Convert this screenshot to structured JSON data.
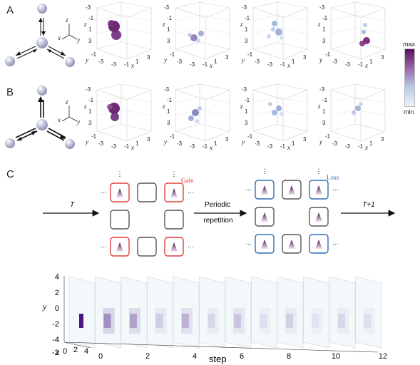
{
  "panels": {
    "a": "A",
    "b": "B",
    "c": "C"
  },
  "axes_3d": {
    "x": "x",
    "y": "y",
    "z": "z",
    "x_ticks": [
      "-3",
      "-1",
      "1",
      "3"
    ],
    "y_ticks": [
      "-3",
      "-1",
      "1",
      "3"
    ],
    "z_ticks": [
      "-3",
      "-1",
      "1",
      "3"
    ]
  },
  "colorbar": {
    "max": "max",
    "min": "min",
    "color_max": "#5c0f5c",
    "color_min": "#eaf4f8"
  },
  "flow": {
    "t_label": "T",
    "t1_label": "T+1",
    "periodic": "Periodic",
    "repetition": "repetition",
    "gain": "Gain",
    "loss": "Loss",
    "gain_color": "#e0403a",
    "loss_color": "#2f6db6",
    "neutral_color": "#555555"
  },
  "bottom_axes": {
    "y_label": "y",
    "x_label": "x",
    "step_label": "step",
    "y_ticks": [
      "4",
      "2",
      "0",
      "-2",
      "-4"
    ],
    "x_ticks": [
      "-2",
      "0",
      "2",
      "4"
    ],
    "step_ticks": [
      "0",
      "2",
      "4",
      "6",
      "8",
      "10",
      "12"
    ]
  },
  "chart_data": {
    "type": "heatmap",
    "xlabel": "step",
    "ylabel": "y",
    "steps": [
      0,
      1,
      2,
      3,
      4,
      5,
      6,
      7,
      8,
      9,
      10,
      11
    ],
    "relative_peak_intensity": [
      1.0,
      0.55,
      0.45,
      0.2,
      0.35,
      0.15,
      0.25,
      0.1,
      0.18,
      0.08,
      0.15,
      0.1
    ]
  }
}
